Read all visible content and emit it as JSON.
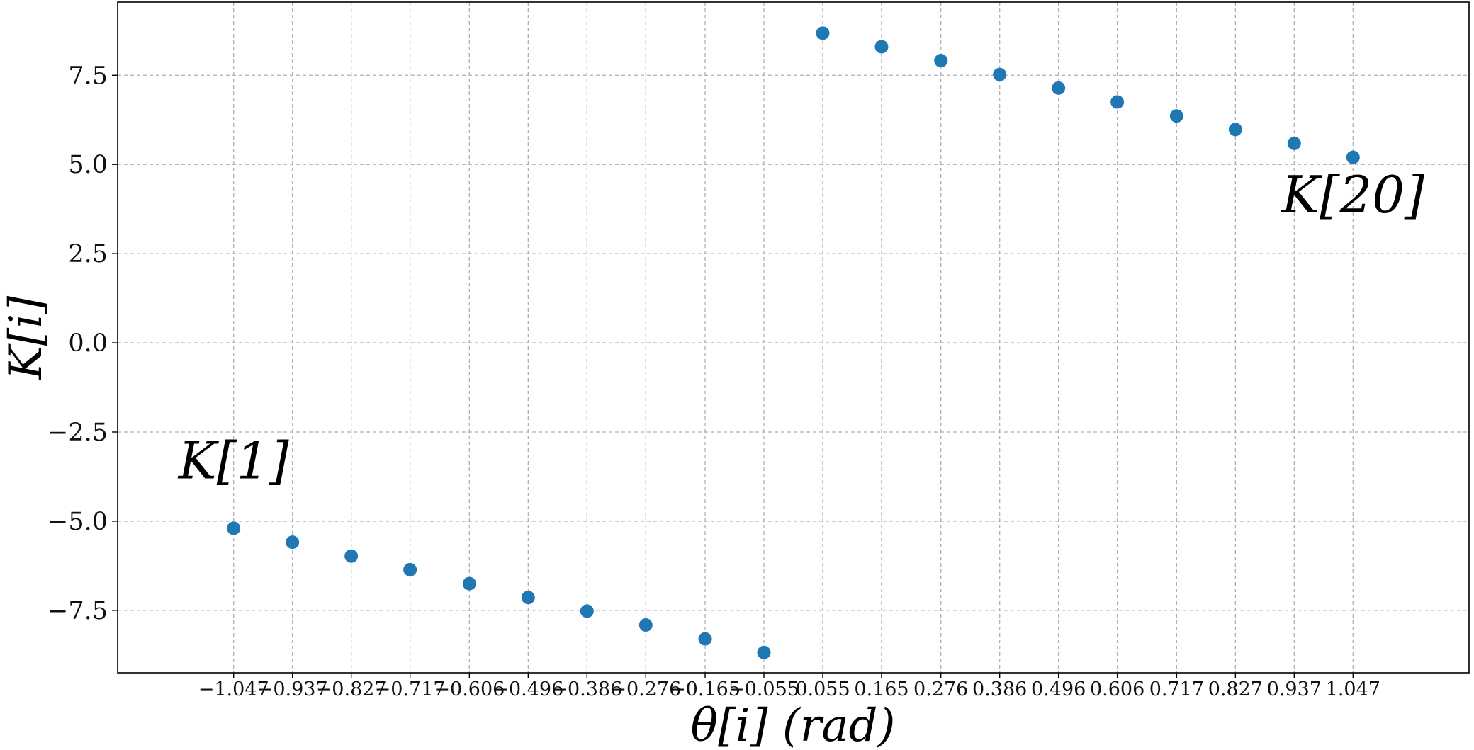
{
  "chart_data": {
    "type": "scatter",
    "xlabel": "θ[i] (rad)",
    "ylabel": "K[i]",
    "xlim": [
      -1.264,
      1.264
    ],
    "ylim": [
      -9.25,
      9.55
    ],
    "grid": true,
    "marker_color": "#1f77b4",
    "x_tick_labels": [
      "−1.047",
      "−0.937",
      "−0.827",
      "−0.717",
      "−0.606",
      "−0.496",
      "−0.386",
      "−0.276",
      "−0.165",
      "−0.055",
      "0.055",
      "0.165",
      "0.276",
      "0.386",
      "0.496",
      "0.606",
      "0.717",
      "0.827",
      "0.937",
      "1.047"
    ],
    "y_ticks": [
      -7.5,
      -5.0,
      -2.5,
      0.0,
      2.5,
      5.0,
      7.5
    ],
    "y_tick_labels": [
      "−7.5",
      "−5.0",
      "−2.5",
      "0.0",
      "2.5",
      "5.0",
      "7.5"
    ],
    "points": [
      {
        "x": -1.047,
        "y": -5.2
      },
      {
        "x": -0.937,
        "y": -5.59
      },
      {
        "x": -0.827,
        "y": -5.98
      },
      {
        "x": -0.717,
        "y": -6.36
      },
      {
        "x": -0.606,
        "y": -6.75
      },
      {
        "x": -0.496,
        "y": -7.14
      },
      {
        "x": -0.386,
        "y": -7.52
      },
      {
        "x": -0.276,
        "y": -7.91
      },
      {
        "x": -0.165,
        "y": -8.3
      },
      {
        "x": -0.055,
        "y": -8.68
      },
      {
        "x": 0.055,
        "y": 8.68
      },
      {
        "x": 0.165,
        "y": 8.3
      },
      {
        "x": 0.276,
        "y": 7.91
      },
      {
        "x": 0.386,
        "y": 7.52
      },
      {
        "x": 0.496,
        "y": 7.14
      },
      {
        "x": 0.606,
        "y": 6.75
      },
      {
        "x": 0.717,
        "y": 6.36
      },
      {
        "x": 0.827,
        "y": 5.98
      },
      {
        "x": 0.937,
        "y": 5.59
      },
      {
        "x": 1.047,
        "y": 5.2
      }
    ],
    "annotations": [
      {
        "text": "K[1]",
        "x": -1.047,
        "y": -3.8,
        "anchor": "middle"
      },
      {
        "text": "K[20]",
        "x": 1.047,
        "y": 3.65,
        "anchor": "middle"
      }
    ]
  }
}
